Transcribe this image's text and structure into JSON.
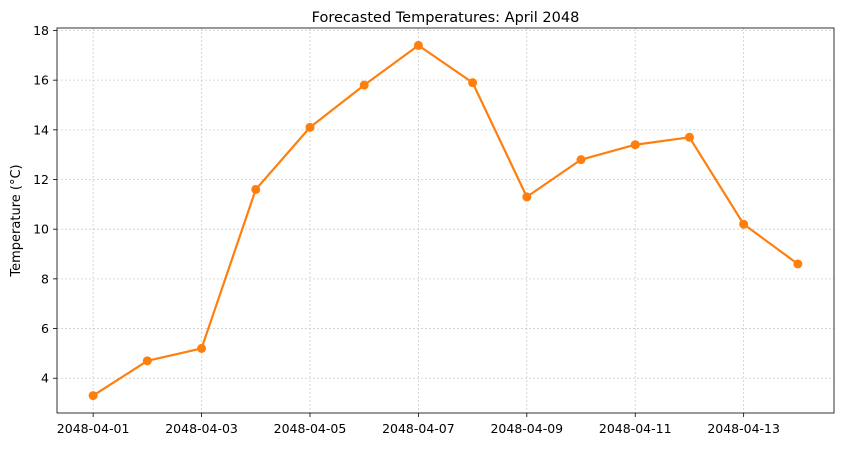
{
  "chart_data": {
    "type": "line",
    "title": "Forecasted Temperatures: April 2048",
    "xlabel": "",
    "ylabel": "Temperature (°C)",
    "x": [
      "2048-04-01",
      "2048-04-02",
      "2048-04-03",
      "2048-04-04",
      "2048-04-05",
      "2048-04-06",
      "2048-04-07",
      "2048-04-08",
      "2048-04-09",
      "2048-04-10",
      "2048-04-11",
      "2048-04-12",
      "2048-04-13",
      "2048-04-14"
    ],
    "series": [
      {
        "color": "#ff7f0e",
        "marker": "circle",
        "values": [
          3.3,
          4.7,
          5.2,
          11.6,
          14.1,
          15.8,
          17.4,
          15.9,
          11.3,
          12.8,
          13.4,
          13.7,
          10.2,
          8.6
        ]
      }
    ],
    "xticks": [
      "2048-04-01",
      "2048-04-03",
      "2048-04-05",
      "2048-04-07",
      "2048-04-09",
      "2048-04-11",
      "2048-04-13"
    ],
    "yticks": [
      4,
      6,
      8,
      10,
      12,
      14,
      16,
      18
    ],
    "ylim": [
      2.6,
      18.1
    ],
    "xlim": [
      "2048-03-31T08:00",
      "2048-04-14T16:00"
    ],
    "grid": true,
    "legend": "none"
  }
}
